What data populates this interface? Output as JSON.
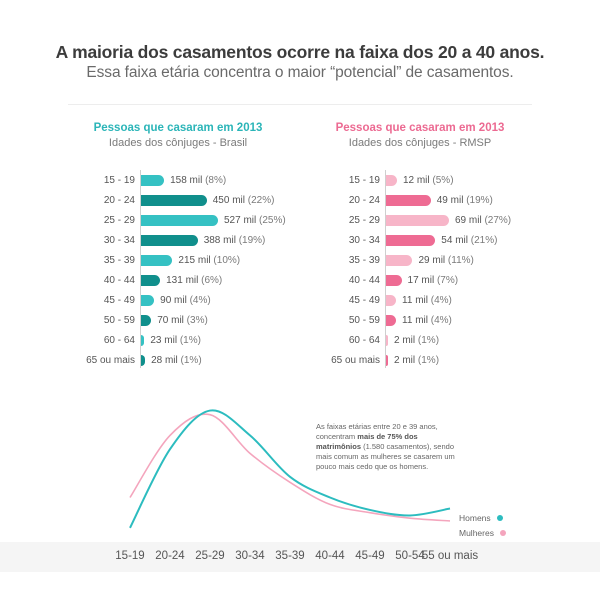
{
  "header": {
    "title": "A maioria dos casamentos ocorre na faixa dos 20 a 40 anos.",
    "subtitle": "Essa faixa etária concentra o maior “potencial” de casamentos."
  },
  "colors": {
    "brasil_dark": "#108f8c",
    "brasil_light": "#35c1c3",
    "rmsp_dark": "#ee6b93",
    "rmsp_light": "#f7b5c8",
    "homens": "#2cbcbf",
    "mulheres": "#f4a5bd"
  },
  "chart_data": [
    {
      "type": "bar",
      "orientation": "horizontal",
      "title": "Pessoas que casaram em 2013",
      "subtitle": "Idades dos cônjuges - Brasil",
      "categories": [
        "15 - 19",
        "20 - 24",
        "25 - 29",
        "30 - 34",
        "35 - 39",
        "40 - 44",
        "45 - 49",
        "50 - 59",
        "60 - 64",
        "65 ou mais"
      ],
      "values": [
        158,
        450,
        527,
        388,
        215,
        131,
        90,
        70,
        23,
        28
      ],
      "value_labels": [
        "158 mil",
        "450 mil",
        "527 mil",
        "388 mil",
        "215 mil",
        "131 mil",
        "90 mil",
        "70 mil",
        "23 mil",
        "28 mil"
      ],
      "percent_labels": [
        "(8%)",
        "(22%)",
        "(25%)",
        "(19%)",
        "(10%)",
        "(6%)",
        "(4%)",
        "(3%)",
        "(1%)",
        "(1%)"
      ]
    },
    {
      "type": "bar",
      "orientation": "horizontal",
      "title": "Pessoas que casaram em 2013",
      "subtitle": "Idades dos cônjuges - RMSP",
      "categories": [
        "15 - 19",
        "20 - 24",
        "25 - 29",
        "30 - 34",
        "35 - 39",
        "40 - 44",
        "45 - 49",
        "50 - 59",
        "60 - 64",
        "65 ou mais"
      ],
      "values": [
        12,
        49,
        69,
        54,
        29,
        17,
        11,
        11,
        2,
        2
      ],
      "value_labels": [
        "12 mil",
        "49 mil",
        "69 mil",
        "54 mil",
        "29 mil",
        "17 mil",
        "11 mil",
        "11 mil",
        "2 mil",
        "2 mil"
      ],
      "percent_labels": [
        "(5%)",
        "(19%)",
        "(27%)",
        "(21%)",
        "(11%)",
        "(7%)",
        "(4%)",
        "(4%)",
        "(1%)",
        "(1%)"
      ]
    },
    {
      "type": "line",
      "categories": [
        "15-19",
        "20-24",
        "25-29",
        "30-34",
        "35-39",
        "40-44",
        "45-49",
        "50-54",
        "55 ou mais"
      ],
      "series": [
        {
          "name": "Homens",
          "values": [
            3,
            60,
            88,
            70,
            40,
            25,
            16,
            12,
            17
          ]
        },
        {
          "name": "Mulheres",
          "values": [
            25,
            70,
            85,
            57,
            36,
            20,
            14,
            10,
            8
          ]
        }
      ],
      "annotation": {
        "pre": "As faixas etárias entre 20 e 39 anos, concentram ",
        "bold": "mais de 75% dos matrimônios",
        "post": " (1.580 casamentos), sendo mais comum as mulheres se casarem um pouco mais cedo que os homens."
      }
    }
  ]
}
